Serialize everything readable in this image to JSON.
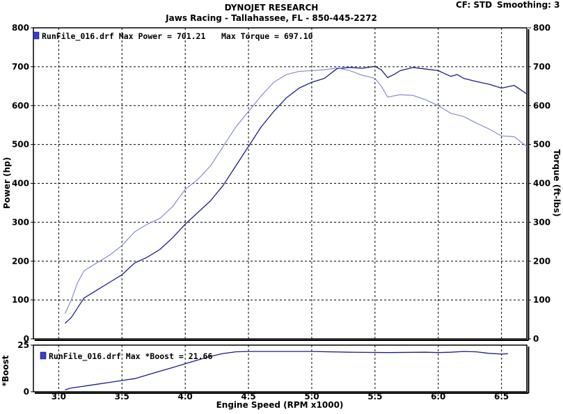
{
  "header": {
    "title": "DYNOJET RESEARCH",
    "subtitle": "Jaws Racing - Tallahassee, FL - 850-445-2272",
    "cf_label": "CF: STD",
    "smoothing_label": "Smoothing: 3"
  },
  "colors": {
    "background": "#ffffff",
    "grid": "#000000",
    "power_line": "#1b1b8c",
    "torque_line": "#7b82cf",
    "boost_line": "#1b1b8c",
    "legend_swatch": "#3a3ad8"
  },
  "chart_data": [
    {
      "type": "line",
      "legend": "RunFile_016.drf Max Power = 701.21",
      "legend_torque": "Max Torque = 697.10",
      "xlabel": "Engine Speed (RPM x1000)",
      "ylabel": "Power (hp)",
      "y2label": "Torque (ft-lbs)",
      "xlim": [
        2.8,
        6.7
      ],
      "ylim": [
        0,
        800
      ],
      "x_ticks": [
        "3.0",
        "3.5",
        "4.0",
        "4.5",
        "5.0",
        "5.5",
        "6.0",
        "6.5"
      ],
      "y_ticks": [
        "0",
        "100",
        "200",
        "300",
        "400",
        "500",
        "600",
        "700",
        "800"
      ],
      "grid": true,
      "series": [
        {
          "role": "power",
          "x": [
            3.05,
            3.1,
            3.15,
            3.2,
            3.3,
            3.4,
            3.5,
            3.6,
            3.7,
            3.8,
            3.9,
            4.0,
            4.1,
            4.2,
            4.3,
            4.4,
            4.5,
            4.6,
            4.7,
            4.8,
            4.9,
            5.0,
            5.1,
            5.2,
            5.3,
            5.4,
            5.5,
            5.55,
            5.6,
            5.65,
            5.7,
            5.8,
            5.9,
            6.0,
            6.1,
            6.15,
            6.2,
            6.3,
            6.4,
            6.5,
            6.6,
            6.7
          ],
          "values": [
            40,
            55,
            80,
            105,
            125,
            145,
            165,
            195,
            210,
            230,
            260,
            295,
            325,
            355,
            395,
            445,
            495,
            545,
            585,
            620,
            645,
            660,
            670,
            695,
            698,
            696,
            701,
            692,
            672,
            680,
            690,
            698,
            694,
            690,
            675,
            680,
            670,
            662,
            655,
            645,
            652,
            630
          ]
        },
        {
          "role": "torque",
          "x": [
            3.05,
            3.1,
            3.15,
            3.2,
            3.3,
            3.4,
            3.5,
            3.6,
            3.7,
            3.8,
            3.9,
            4.0,
            4.1,
            4.2,
            4.3,
            4.4,
            4.5,
            4.6,
            4.7,
            4.8,
            4.9,
            5.0,
            5.1,
            5.2,
            5.3,
            5.4,
            5.5,
            5.55,
            5.6,
            5.65,
            5.7,
            5.8,
            5.9,
            6.0,
            6.1,
            6.2,
            6.3,
            6.4,
            6.5,
            6.6,
            6.7
          ],
          "values": [
            65,
            100,
            145,
            175,
            195,
            215,
            240,
            275,
            295,
            310,
            340,
            385,
            410,
            445,
            495,
            545,
            585,
            625,
            660,
            680,
            688,
            690,
            692,
            697,
            690,
            678,
            670,
            650,
            622,
            625,
            628,
            626,
            615,
            600,
            580,
            572,
            555,
            540,
            522,
            520,
            495
          ]
        }
      ]
    },
    {
      "type": "line",
      "legend": "RunFile_016.drf Max *Boost = 21.66",
      "ylabel": "*Boost",
      "xlim": [
        2.8,
        6.7
      ],
      "ylim": [
        0,
        25
      ],
      "y_ticks": [
        "0",
        "25"
      ],
      "grid": true,
      "series": [
        {
          "role": "boost",
          "x": [
            3.05,
            3.1,
            3.2,
            3.3,
            3.4,
            3.5,
            3.6,
            3.7,
            3.8,
            3.9,
            4.0,
            4.1,
            4.2,
            4.3,
            4.4,
            4.5,
            4.7,
            5.0,
            5.3,
            5.6,
            5.9,
            6.0,
            6.1,
            6.2,
            6.3,
            6.4,
            6.5,
            6.55
          ],
          "values": [
            1,
            2,
            3,
            4,
            5,
            6,
            7,
            9,
            11,
            13,
            15,
            17,
            19,
            20.5,
            21.4,
            21.6,
            21.6,
            21.6,
            21.2,
            21.0,
            21.2,
            21.0,
            21.2,
            21.6,
            21.4,
            20.6,
            20.2,
            20.4
          ]
        }
      ]
    }
  ]
}
